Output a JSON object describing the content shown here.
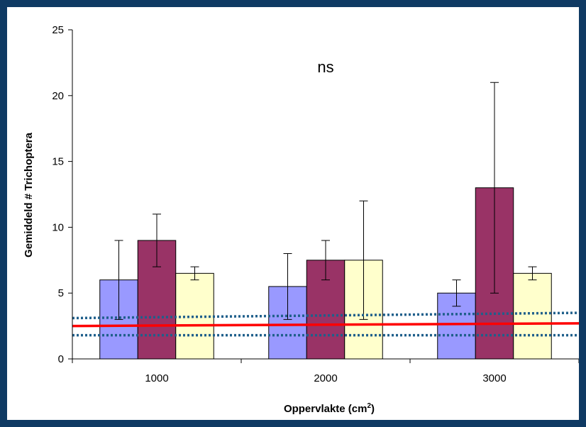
{
  "colors": {
    "frame_border": "#0f3a63",
    "background": "#ffffff",
    "series": [
      "#9999ff",
      "#993366",
      "#ffffcc"
    ],
    "reference_line": "#ff0000",
    "band_lines": "#1f5f8b"
  },
  "chart_data": {
    "type": "bar",
    "title": "",
    "annotation": "ns",
    "xlabel": "Oppervlakte (cm",
    "xlabel_superscript": "2",
    "xlabel_suffix": ")",
    "ylabel": "Gemiddeld # Trichoptera",
    "ylim": [
      0,
      25
    ],
    "yticks": [
      "0",
      "5",
      "10",
      "15",
      "20",
      "25"
    ],
    "categories": [
      "1000",
      "2000",
      "3000"
    ],
    "grid": false,
    "legend": "none",
    "series": [
      {
        "values": [
          6.0,
          5.5,
          5.0
        ],
        "errors": [
          [
            3.0,
            9.0
          ],
          [
            3.0,
            8.0
          ],
          [
            4.0,
            6.0
          ]
        ]
      },
      {
        "values": [
          9.0,
          7.5,
          13.0
        ],
        "errors": [
          [
            7.0,
            11.0
          ],
          [
            6.0,
            9.0
          ],
          [
            5.0,
            21.0
          ]
        ]
      },
      {
        "values": [
          6.5,
          7.5,
          6.5
        ],
        "errors": [
          [
            6.0,
            7.0
          ],
          [
            3.0,
            12.0
          ],
          [
            6.0,
            7.0
          ]
        ]
      }
    ],
    "reference_lines": [
      {
        "style": "solid",
        "color": "#ff0000",
        "start": 2.5,
        "end": 2.7
      },
      {
        "style": "dotted",
        "color": "#1f5f8b",
        "start": 3.1,
        "end": 3.5
      },
      {
        "style": "dotted",
        "color": "#1f5f8b",
        "start": 1.8,
        "end": 1.8
      }
    ]
  }
}
